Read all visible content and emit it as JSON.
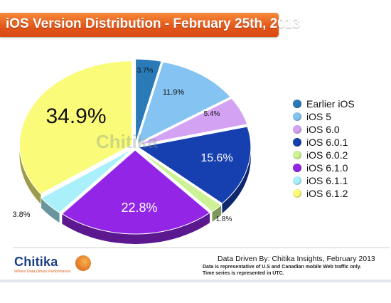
{
  "header": {
    "title": "iOS Version Distribution - February 25th, 2013"
  },
  "chart_data": {
    "type": "pie",
    "title": "iOS Version Distribution - February 25th, 2013",
    "start_angle_deg": 0,
    "slices": [
      {
        "name": "Earlier iOS",
        "value": 3.7,
        "label": "3.7%",
        "color": "#2a7ab8"
      },
      {
        "name": "iOS 5",
        "value": 11.9,
        "label": "11.9%",
        "color": "#84c3f2"
      },
      {
        "name": "iOS 6.0",
        "value": 5.4,
        "label": "5.4%",
        "color": "#d3a2f2"
      },
      {
        "name": "iOS 6.0.1",
        "value": 15.6,
        "label": "15.6%",
        "color": "#163fb0"
      },
      {
        "name": "iOS 6.0.2",
        "value": 1.8,
        "label": "1.8%",
        "color": "#cdf296"
      },
      {
        "name": "iOS 6.1.0",
        "value": 22.8,
        "label": "22.8%",
        "color": "#9326e6"
      },
      {
        "name": "iOS 6.1.1",
        "value": 3.8,
        "label": "3.8%",
        "color": "#a9f0fb"
      },
      {
        "name": "iOS 6.1.2",
        "value": 34.9,
        "label": "34.9%",
        "color": "#fbfb7a"
      }
    ],
    "legend_placement": "right",
    "watermark": "Chitika"
  },
  "legend": {
    "items": [
      {
        "label": "Earlier iOS",
        "color": "#2a7ab8"
      },
      {
        "label": "iOS 5",
        "color": "#84c3f2"
      },
      {
        "label": "iOS 6.0",
        "color": "#d3a2f2"
      },
      {
        "label": "iOS 6.0.1",
        "color": "#163fb0"
      },
      {
        "label": "iOS 6.0.2",
        "color": "#cdf296"
      },
      {
        "label": "iOS 6.1.0",
        "color": "#9326e6"
      },
      {
        "label": "iOS 6.1.1",
        "color": "#a9f0fb"
      },
      {
        "label": "iOS 6.1.2",
        "color": "#fbfb7a"
      }
    ]
  },
  "footer": {
    "logo": "Chitika",
    "logo_tagline": "Where Data Drives Performance",
    "source": "Data Driven By: Chitika Insights, February 2013",
    "note_1": "Data is representative of U.S and Canadian mobile Web traffic only.",
    "note_2": "Time series is represented in UTC."
  }
}
